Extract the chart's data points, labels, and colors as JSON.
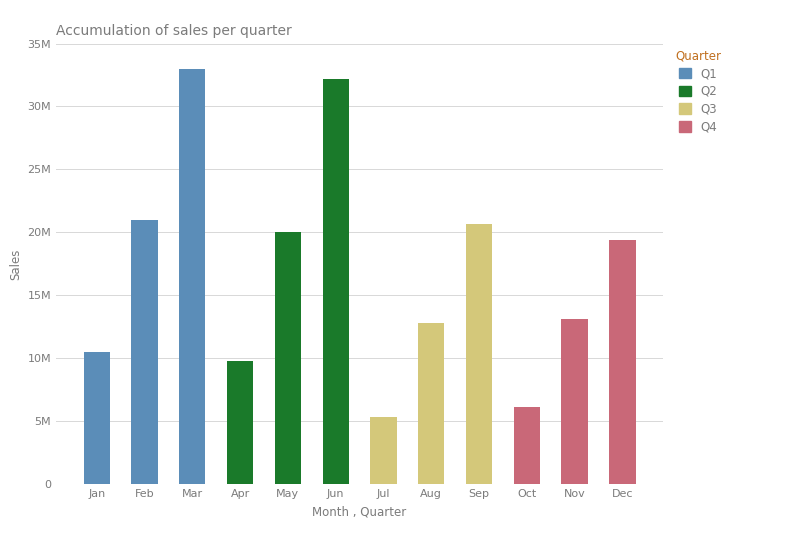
{
  "title": "Accumulation of sales per quarter",
  "xlabel": "Month , Quarter",
  "ylabel": "Sales",
  "months": [
    "Jan",
    "Feb",
    "Mar",
    "Apr",
    "May",
    "Jun",
    "Jul",
    "Aug",
    "Sep",
    "Oct",
    "Nov",
    "Dec"
  ],
  "values": [
    10500000,
    21000000,
    33000000,
    9800000,
    20000000,
    32200000,
    5300000,
    12800000,
    20700000,
    6100000,
    13100000,
    19400000
  ],
  "quarters": [
    "Q1",
    "Q1",
    "Q1",
    "Q2",
    "Q2",
    "Q2",
    "Q3",
    "Q3",
    "Q3",
    "Q4",
    "Q4",
    "Q4"
  ],
  "colors": {
    "Q1": "#5B8DB8",
    "Q2": "#1A7A2A",
    "Q3": "#D4C87A",
    "Q4": "#C96878"
  },
  "legend_labels": [
    "Q1",
    "Q2",
    "Q3",
    "Q4"
  ],
  "ylim": [
    0,
    35000000
  ],
  "yticks": [
    0,
    5000000,
    10000000,
    15000000,
    20000000,
    25000000,
    30000000,
    35000000
  ],
  "background_color": "#ffffff",
  "grid_color": "#d8d8d8",
  "title_fontsize": 10,
  "axis_label_fontsize": 8.5,
  "tick_fontsize": 8,
  "legend_fontsize": 8.5,
  "legend_title": "Quarter",
  "title_color": "#7B7B7B",
  "axis_label_color": "#7B7B7B",
  "tick_color": "#7B7B7B",
  "legend_title_color": "#C07020",
  "legend_text_color": "#7B7B7B"
}
